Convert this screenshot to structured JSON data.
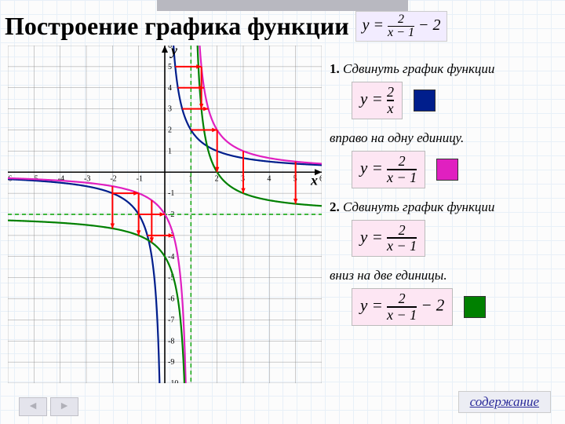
{
  "title": "Построение графика функции",
  "title_formula": {
    "lhs": "y =",
    "num": "2",
    "den": "x − 1",
    "tail": "− 2"
  },
  "axis": {
    "x_label": "x",
    "y_label": "y"
  },
  "chart": {
    "type": "line",
    "background_color": "#fcfcfc",
    "grid_color": "#808080",
    "xlim": [
      -6,
      6
    ],
    "ylim": [
      -10,
      6
    ],
    "xtick_step": 1,
    "ytick_step": 1,
    "asymptotes": {
      "color": "#00a000",
      "dash": "5,4",
      "v_x": 1,
      "h_y": -2
    },
    "curves": [
      {
        "id": "base",
        "color": "#001e8c",
        "width": 2.2,
        "fn": "2/x",
        "asym_x": 0,
        "asym_y": 0
      },
      {
        "id": "shift1",
        "color": "#e020c0",
        "width": 2.2,
        "fn": "2/(x-1)",
        "asym_x": 1,
        "asym_y": 0
      },
      {
        "id": "shift2",
        "color": "#008000",
        "width": 2.2,
        "fn": "2/(x-1)-2",
        "asym_x": 1,
        "asym_y": -2
      }
    ],
    "arrows": {
      "color": "#ff0000",
      "width": 2,
      "h_shift": {
        "dx": 1,
        "at_y": [
          5,
          4,
          3,
          2,
          1,
          -1,
          -2,
          -3
        ]
      },
      "v_shift": {
        "dy": -2,
        "at_x": [
          0.4,
          0.6,
          0.7,
          3,
          4,
          -2,
          -3
        ]
      }
    }
  },
  "steps": {
    "s1_prefix": "1.",
    "s1_text": "Сдвинуть график функции",
    "s1_eq": {
      "lhs": "y =",
      "num": "2",
      "den": "x"
    },
    "s1_swatch": "#001e8c",
    "s1_tail": "вправо на одну единицу.",
    "s1b_eq": {
      "lhs": "y =",
      "num": "2",
      "den": "x − 1"
    },
    "s1b_swatch": "#e020c0",
    "s2_prefix": "2.",
    "s2_text": "Сдвинуть график функции",
    "s2_eq": {
      "lhs": "y =",
      "num": "2",
      "den": "x − 1"
    },
    "s2_tail": "вниз на две единицы.",
    "s2b_eq": {
      "lhs": "y =",
      "num": "2",
      "den": "x − 1",
      "tail": "− 2"
    },
    "s2b_swatch": "#008000"
  },
  "nav": {
    "prev": "◄",
    "next": "►"
  },
  "link": "содержание"
}
